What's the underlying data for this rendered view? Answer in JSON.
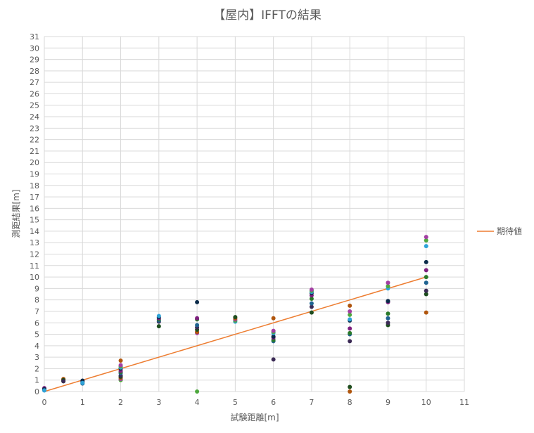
{
  "chart_data": {
    "type": "scatter",
    "title": "【屋内】IFFTの結果",
    "xlabel": "試験距離[m]",
    "ylabel": "測距結果[m]",
    "xlim": [
      0,
      11
    ],
    "ylim": [
      0,
      31
    ],
    "x_ticks": [
      0,
      1,
      2,
      3,
      4,
      5,
      6,
      7,
      8,
      9,
      10,
      11
    ],
    "y_ticks": [
      0,
      1,
      2,
      3,
      4,
      5,
      6,
      7,
      8,
      9,
      10,
      11,
      12,
      13,
      14,
      15,
      16,
      17,
      18,
      19,
      20,
      21,
      22,
      23,
      24,
      25,
      26,
      27,
      28,
      29,
      30,
      31
    ],
    "grid": true,
    "legend_position": "right",
    "colors": {
      "expected_line": "#ED7D31",
      "gridline": "#D9D9D9",
      "point_palette": [
        "#1F6391",
        "#2A7A2A",
        "#7F1F7F",
        "#0B2B4A",
        "#2FA3D8",
        "#4DA83D",
        "#A33FA3",
        "#B0560E",
        "#1E4D1E",
        "#3B2A55"
      ]
    },
    "series": [
      {
        "name": "期待値",
        "kind": "line",
        "color": "#ED7D31",
        "points": [
          [
            0,
            0
          ],
          [
            10,
            10
          ]
        ]
      },
      {
        "kind": "points",
        "points": [
          [
            0,
            0.1
          ],
          [
            0,
            0.2
          ],
          [
            0,
            0.3
          ],
          [
            0,
            0.2
          ],
          [
            0,
            0.1
          ],
          [
            0.5,
            0.9
          ],
          [
            0.5,
            1.0
          ],
          [
            0.5,
            1.1
          ],
          [
            0.5,
            1.0
          ],
          [
            0.5,
            0.9
          ],
          [
            1,
            0.7
          ],
          [
            1,
            0.8
          ],
          [
            1,
            0.9
          ],
          [
            1,
            0.95
          ],
          [
            1,
            0.75
          ],
          [
            2,
            1.0
          ],
          [
            2,
            1.1
          ],
          [
            2,
            1.2
          ],
          [
            2,
            1.3
          ],
          [
            2,
            1.4
          ],
          [
            2,
            1.6
          ],
          [
            2,
            1.7
          ],
          [
            2,
            1.8
          ],
          [
            2,
            2.0
          ],
          [
            2,
            2.1
          ],
          [
            2,
            2.2
          ],
          [
            2,
            2.3
          ],
          [
            2,
            2.7
          ],
          [
            3,
            5.7
          ],
          [
            3,
            6.1
          ],
          [
            3,
            6.2
          ],
          [
            3,
            6.3
          ],
          [
            3,
            6.4
          ],
          [
            3,
            6.5
          ],
          [
            3,
            6.6
          ],
          [
            4,
            0.0
          ],
          [
            4,
            5.1
          ],
          [
            4,
            5.2
          ],
          [
            4,
            5.4
          ],
          [
            4,
            5.6
          ],
          [
            4,
            5.8
          ],
          [
            4,
            6.3
          ],
          [
            4,
            6.4
          ],
          [
            4,
            7.8
          ],
          [
            5,
            6.1
          ],
          [
            5,
            6.2
          ],
          [
            5,
            6.3
          ],
          [
            5,
            6.4
          ],
          [
            5,
            6.5
          ],
          [
            6,
            2.8
          ],
          [
            6,
            4.4
          ],
          [
            6,
            4.5
          ],
          [
            6,
            4.7
          ],
          [
            6,
            4.8
          ],
          [
            6,
            5.1
          ],
          [
            6,
            5.2
          ],
          [
            6,
            5.3
          ],
          [
            6,
            6.4
          ],
          [
            7,
            6.9
          ],
          [
            7,
            7.4
          ],
          [
            7,
            7.7
          ],
          [
            7,
            8.1
          ],
          [
            7,
            8.4
          ],
          [
            7,
            8.6
          ],
          [
            7,
            8.7
          ],
          [
            7,
            8.8
          ],
          [
            7,
            8.9
          ],
          [
            8,
            0.0
          ],
          [
            8,
            0.4
          ],
          [
            8,
            4.4
          ],
          [
            8,
            5.0
          ],
          [
            8,
            5.1
          ],
          [
            8,
            5.5
          ],
          [
            8,
            6.2
          ],
          [
            8,
            6.3
          ],
          [
            8,
            6.7
          ],
          [
            8,
            7.0
          ],
          [
            8,
            7.5
          ],
          [
            9,
            5.8
          ],
          [
            9,
            6.0
          ],
          [
            9,
            6.4
          ],
          [
            9,
            6.8
          ],
          [
            9,
            7.8
          ],
          [
            9,
            7.9
          ],
          [
            9,
            9.0
          ],
          [
            9,
            9.2
          ],
          [
            9,
            9.5
          ],
          [
            10,
            6.9
          ],
          [
            10,
            8.5
          ],
          [
            10,
            8.8
          ],
          [
            10,
            9.5
          ],
          [
            10,
            10.0
          ],
          [
            10,
            10.6
          ],
          [
            10,
            11.3
          ],
          [
            10,
            12.7
          ],
          [
            10,
            13.2
          ],
          [
            10,
            13.5
          ]
        ]
      }
    ]
  }
}
